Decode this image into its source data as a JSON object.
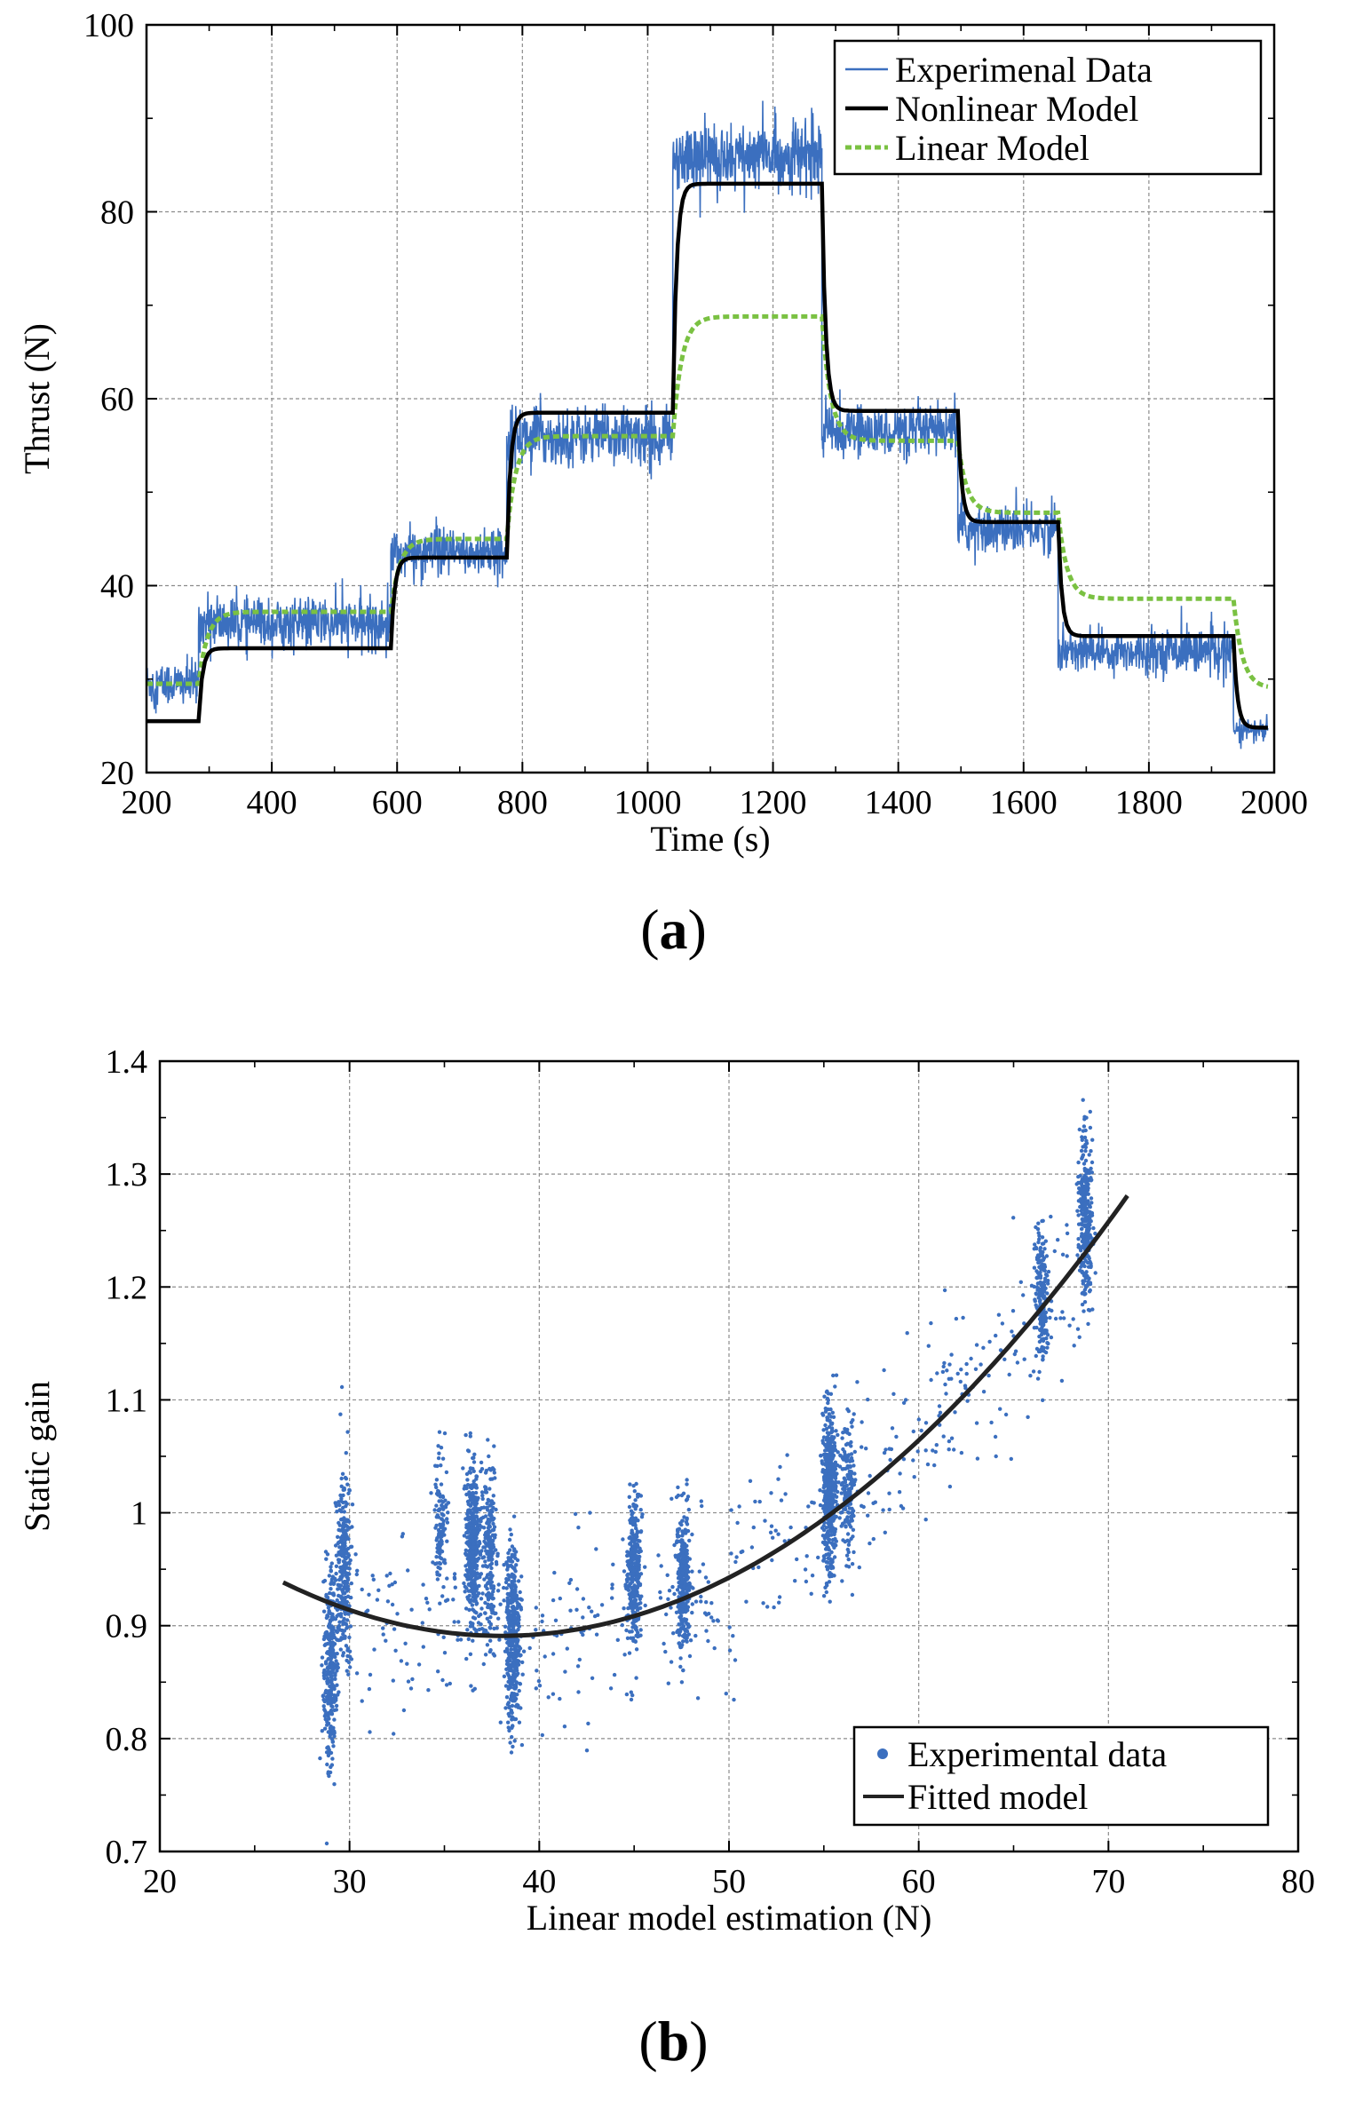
{
  "panel_labels": {
    "a": "(a)",
    "b": "(b)",
    "a_letter": "a",
    "b_letter": "b"
  },
  "colors": {
    "experimental": "#3b6fbf",
    "nonlinear": "#000000",
    "linear": "#7ac142",
    "fitted": "#222222",
    "grid": "#8c8c8c"
  },
  "chart_data": [
    {
      "type": "line",
      "id": "a",
      "title": "",
      "xlabel": "Time (s)",
      "ylabel": "Thrust (N)",
      "xlim": [
        200,
        2000
      ],
      "ylim": [
        20,
        100
      ],
      "xticks": [
        200,
        400,
        600,
        800,
        1000,
        1200,
        1400,
        1600,
        1800,
        2000
      ],
      "yticks": [
        20,
        40,
        60,
        80,
        100
      ],
      "grid": true,
      "legend_position": "top-right",
      "legend": [
        "Experimenal Data",
        "Nonlinear Model",
        "Linear Model"
      ],
      "segments": [
        {
          "t0": 200,
          "t1": 283,
          "exp_mean": 29.5,
          "exp_noise": 2.2,
          "nonlinear": 25.5,
          "linear": 29.5
        },
        {
          "t0": 283,
          "t1": 590,
          "exp_mean": 36.0,
          "exp_noise": 2.4,
          "nonlinear": 33.3,
          "linear": 37.2
        },
        {
          "t0": 590,
          "t1": 775,
          "exp_mean": 43.5,
          "exp_noise": 2.3,
          "nonlinear": 43.0,
          "linear": 45.0
        },
        {
          "t0": 775,
          "t1": 1040,
          "exp_mean": 56.0,
          "exp_noise": 2.8,
          "nonlinear": 58.5,
          "linear": 56.0
        },
        {
          "t0": 1040,
          "t1": 1278,
          "exp_mean": 86.0,
          "exp_noise": 3.2,
          "nonlinear": 83.0,
          "linear": 68.8
        },
        {
          "t0": 1278,
          "t1": 1495,
          "exp_mean": 56.5,
          "exp_noise": 2.4,
          "nonlinear": 58.7,
          "linear": 55.5
        },
        {
          "t0": 1495,
          "t1": 1655,
          "exp_mean": 46.0,
          "exp_noise": 2.2,
          "nonlinear": 46.8,
          "linear": 47.8
        },
        {
          "t0": 1655,
          "t1": 1935,
          "exp_mean": 33.0,
          "exp_noise": 2.0,
          "nonlinear": 34.6,
          "linear": 38.6
        },
        {
          "t0": 1935,
          "t1": 1990,
          "exp_mean": 24.5,
          "exp_noise": 1.2,
          "nonlinear": 24.8,
          "linear": 29.0
        }
      ]
    },
    {
      "type": "scatter",
      "id": "b",
      "title": "",
      "xlabel": "Linear model estimation (N)",
      "ylabel": "Static gain",
      "xlim": [
        20,
        80
      ],
      "ylim": [
        0.7,
        1.4
      ],
      "xticks": [
        20,
        30,
        40,
        50,
        60,
        70,
        80
      ],
      "yticks": [
        0.7,
        0.8,
        0.9,
        1,
        1.1,
        1.2,
        1.3,
        1.4
      ],
      "ytick_labels": [
        "0.7",
        "0.8",
        "0.9",
        "1",
        "1.1",
        "1.2",
        "1.3",
        "1.4"
      ],
      "grid": true,
      "legend_position": "bottom-right",
      "legend": [
        "Experimental data",
        "Fitted model"
      ],
      "clusters": [
        {
          "x": 29.0,
          "y_mean": 0.86,
          "y_sd": 0.045,
          "n": 320
        },
        {
          "x": 29.7,
          "y_mean": 0.96,
          "y_sd": 0.04,
          "n": 260
        },
        {
          "x": 34.8,
          "y_mean": 0.99,
          "y_sd": 0.03,
          "n": 120
        },
        {
          "x": 36.5,
          "y_mean": 0.97,
          "y_sd": 0.035,
          "n": 420
        },
        {
          "x": 37.4,
          "y_mean": 0.96,
          "y_sd": 0.04,
          "n": 220
        },
        {
          "x": 38.6,
          "y_mean": 0.89,
          "y_sd": 0.04,
          "n": 420
        },
        {
          "x": 45.0,
          "y_mean": 0.95,
          "y_sd": 0.03,
          "n": 320
        },
        {
          "x": 47.6,
          "y_mean": 0.94,
          "y_sd": 0.03,
          "n": 320
        },
        {
          "x": 55.3,
          "y_mean": 1.02,
          "y_sd": 0.035,
          "n": 520
        },
        {
          "x": 56.3,
          "y_mean": 1.02,
          "y_sd": 0.03,
          "n": 160
        },
        {
          "x": 66.5,
          "y_mean": 1.19,
          "y_sd": 0.03,
          "n": 200
        },
        {
          "x": 68.8,
          "y_mean": 1.26,
          "y_sd": 0.035,
          "n": 320
        }
      ],
      "fitted_model": {
        "type": "quadratic",
        "x_min": 26.5,
        "x_max": 71.0,
        "x_vertex": 38.0,
        "y_vertex": 0.891,
        "curvature": 0.000358
      }
    }
  ]
}
